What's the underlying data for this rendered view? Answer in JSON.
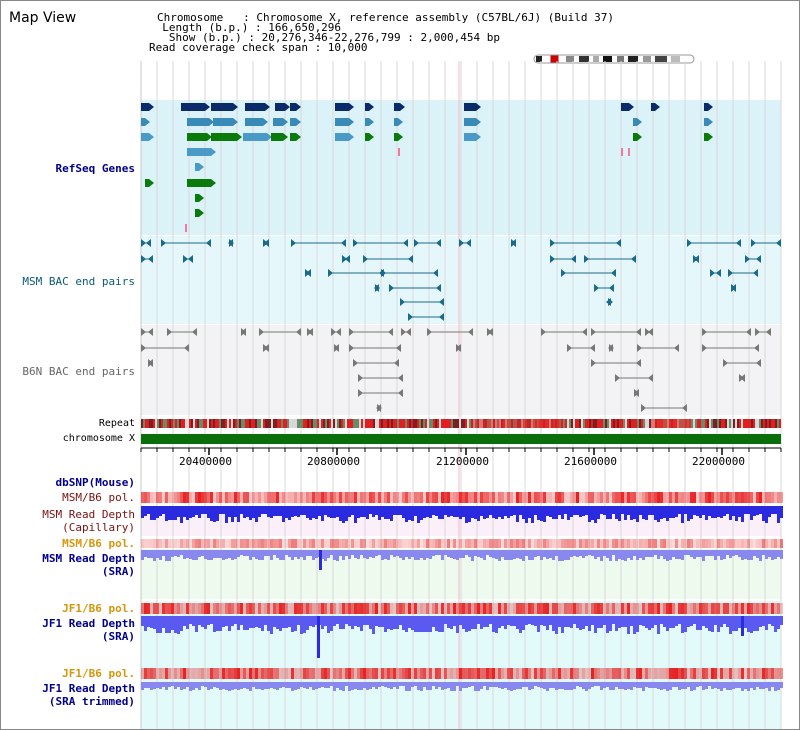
{
  "page_title": "Map View",
  "header": {
    "chromosome_label": "Chromosome   : Chromosome X, reference assembly (C57BL/6J) (Build 37)",
    "length_label": "  Length (b.p.) : 166,650,296",
    "show_label": "   Show (b.p.) : 20,276,346-22,276,799 : 2,000,454 bp",
    "coverage_label": "Read coverage check span : 10,000"
  },
  "tracks": {
    "refseq": "RefSeq Genes",
    "msm_bac": "MSM BAC end pairs",
    "b6n_bac": "B6N BAC end pairs",
    "repeat": "Repeat",
    "chromosome": "chromosome X",
    "dbsnp": "dbSNP(Mouse)",
    "msm_pol_1": "MSM/B6 pol.",
    "msm_depth_cap_1": "MSM Read Depth",
    "msm_depth_cap_2": "(Capillary)",
    "msm_pol_2": "MSM/B6 pol.",
    "msm_depth_sra_1": "MSM Read Depth",
    "msm_depth_sra_2": "(SRA)",
    "jf1_pol_1": "JF1/B6 pol.",
    "jf1_depth_sra_1": "JF1 Read Depth",
    "jf1_depth_sra_2": "(SRA)",
    "jf1_pol_2": "JF1/B6 pol.",
    "jf1_depth_trim_1": "JF1 Read Depth",
    "jf1_depth_trim_2": "(SRA trimmed)"
  },
  "axis_ticks": [
    "20400000",
    "20800000",
    "21200000",
    "21600000",
    "22000000"
  ],
  "colors": {
    "refseq_bg": "#dff3fa",
    "msm_bac_bg": "#eaf8fb",
    "b6n_bac_bg": "#f4f4f7",
    "chromosome_bar": "#0a6e0a",
    "depth_blue": "#2a2ae0",
    "depth_light": "#8888ee",
    "pol_red": "#e62020"
  }
}
